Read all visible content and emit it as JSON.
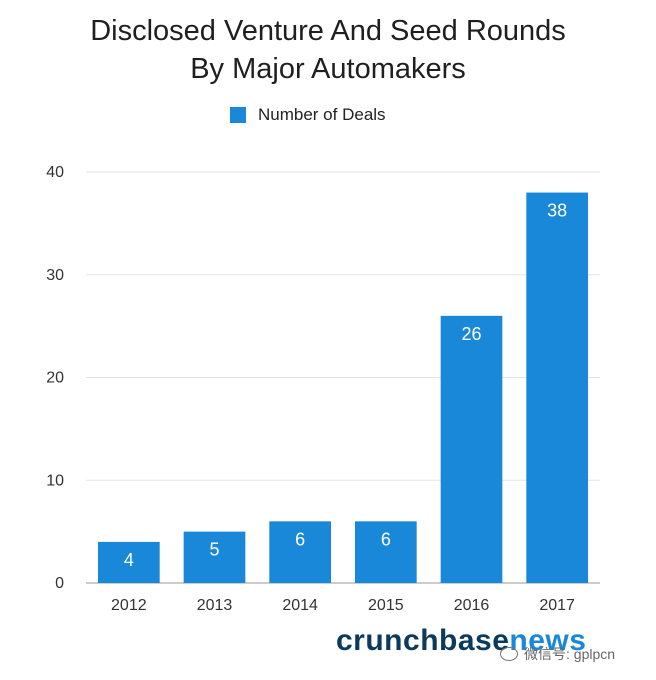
{
  "chart_data": {
    "type": "bar",
    "title_lines": [
      "Disclosed Venture And Seed Rounds",
      "By Major Automakers"
    ],
    "categories": [
      "2012",
      "2013",
      "2014",
      "2015",
      "2016",
      "2017"
    ],
    "series": [
      {
        "name": "Number of Deals",
        "values": [
          4,
          5,
          6,
          6,
          26,
          38
        ]
      }
    ],
    "ylim": [
      0,
      40
    ],
    "yticks": [
      0,
      10,
      20,
      30,
      40
    ],
    "grid": true,
    "legend_position": "top-center",
    "bar_color": "#1a88d9",
    "data_labels": true
  },
  "brand": {
    "main": "crunchbase",
    "accent": "news"
  },
  "watermark": {
    "text": "微信号: gplpcn"
  }
}
